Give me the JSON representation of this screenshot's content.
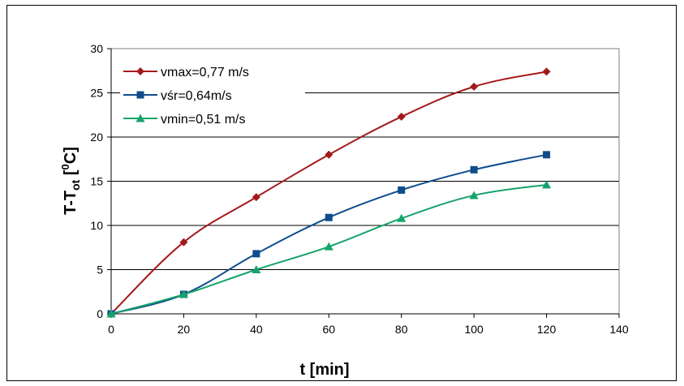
{
  "chart_data": {
    "type": "line",
    "x": [
      0,
      20,
      40,
      60,
      80,
      100,
      120
    ],
    "series": [
      {
        "name": "vmax=0,77 m/s",
        "color": "#A31A1C",
        "marker": "diamond",
        "values": [
          0,
          8.1,
          13.2,
          18.0,
          22.3,
          25.7,
          27.4
        ]
      },
      {
        "name": "vśr=0,64m/s",
        "color": "#0F4C8C",
        "marker": "square",
        "values": [
          0,
          2.2,
          6.8,
          10.9,
          14.0,
          16.3,
          18.0
        ]
      },
      {
        "name": "vmin=0,51 m/s",
        "color": "#16A36B",
        "marker": "triangle",
        "values": [
          0,
          2.2,
          5.0,
          7.6,
          10.8,
          13.4,
          14.6
        ]
      }
    ],
    "xlabel": "t [min]",
    "ylabel_main": "T-T",
    "ylabel_sub": "ot",
    "ylabel_open": " [",
    "ylabel_sup": "0",
    "ylabel_unit": "C]",
    "xlim": [
      0,
      140
    ],
    "ylim": [
      0,
      30
    ],
    "xticks": [
      "0",
      "20",
      "40",
      "60",
      "80",
      "100",
      "120",
      "140"
    ],
    "yticks": [
      "0",
      "5",
      "10",
      "15",
      "20",
      "25",
      "30"
    ],
    "grid": "horizontal",
    "legend_position": "top-left"
  }
}
